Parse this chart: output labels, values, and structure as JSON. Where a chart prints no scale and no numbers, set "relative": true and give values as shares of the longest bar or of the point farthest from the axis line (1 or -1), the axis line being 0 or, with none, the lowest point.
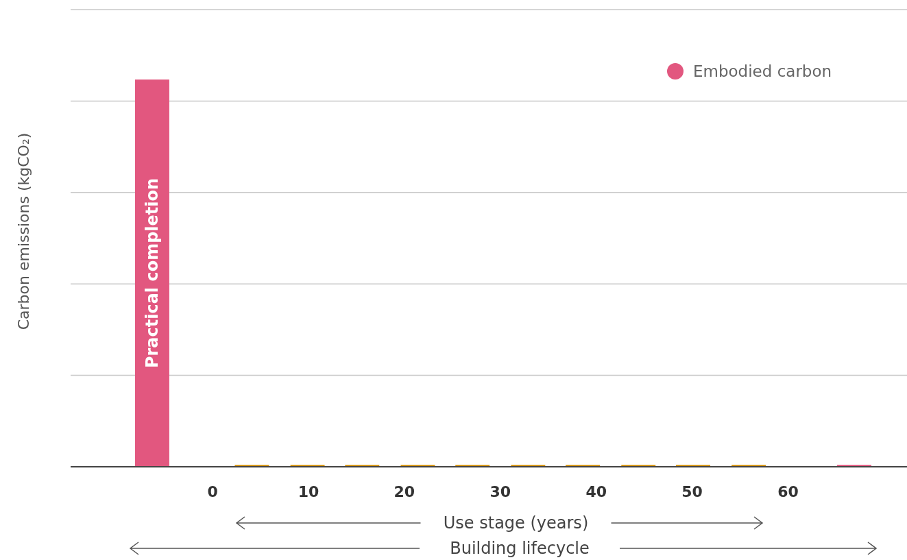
{
  "chart_data": {
    "type": "bar",
    "relative": true,
    "ylabel": "Carbon emissions (kgCO₂)",
    "xlim": [
      -14.8,
      72.4
    ],
    "xticks": [
      0,
      10,
      20,
      30,
      40,
      50,
      60
    ],
    "grid": "y",
    "legend": "top right",
    "series": [
      {
        "name": "Embodied carbon",
        "color": "#e2577f",
        "x": [
          -6.3,
          66.9
        ],
        "values": [
          1,
          0.005
        ]
      },
      {
        "color": "#d4920e",
        "x": [
          4.1,
          9.9,
          15.6,
          21.4,
          27.1,
          32.9,
          38.6,
          44.4,
          50.1,
          55.9
        ],
        "values": [
          0.005,
          0.005,
          0.005,
          0.005,
          0.005,
          0.005,
          0.005,
          0.005,
          0.005,
          0.005
        ]
      }
    ],
    "annotations": [
      "Practical completion",
      "Use stage (years)",
      "Building lifecycle"
    ]
  }
}
